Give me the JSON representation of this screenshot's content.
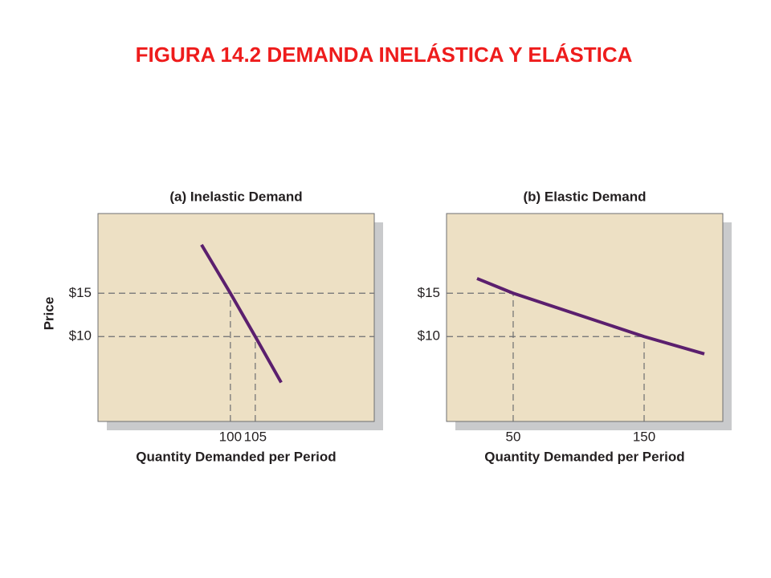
{
  "page_title": "FIGURA 14.2 DEMANDA INELÁSTICA Y ELÁSTICA",
  "chart_data": [
    {
      "type": "line",
      "title": "(a) Inelastic Demand",
      "x_label": "Quantity Demanded per Period",
      "y_label": "Price",
      "x": [
        94.2,
        100,
        105,
        110.2
      ],
      "values": [
        20.6,
        15,
        10,
        4.7
      ],
      "color": "#5b1f6e",
      "xlim": [
        73.4,
        128.9
      ],
      "ylim": [
        0.2,
        24.2
      ],
      "xticks": [
        100,
        105
      ],
      "yticks": [
        {
          "value": 10,
          "label": "$10"
        },
        {
          "value": 15,
          "label": "$15"
        }
      ],
      "guide_lines": "full-width"
    },
    {
      "type": "line",
      "title": "(b) Elastic Demand",
      "x_label": "Quantity Demanded per Period",
      "x": [
        22.4,
        50,
        150,
        196
      ],
      "values": [
        16.7,
        15,
        10,
        8.0
      ],
      "color": "#5b1f6e",
      "xlim": [
        -0.9,
        210.1
      ],
      "ylim": [
        0.2,
        24.2
      ],
      "xticks": [
        50,
        150
      ],
      "yticks": [
        {
          "value": 10,
          "label": "$10"
        },
        {
          "value": 15,
          "label": "$15"
        }
      ],
      "guide_lines": "to-curve"
    }
  ]
}
